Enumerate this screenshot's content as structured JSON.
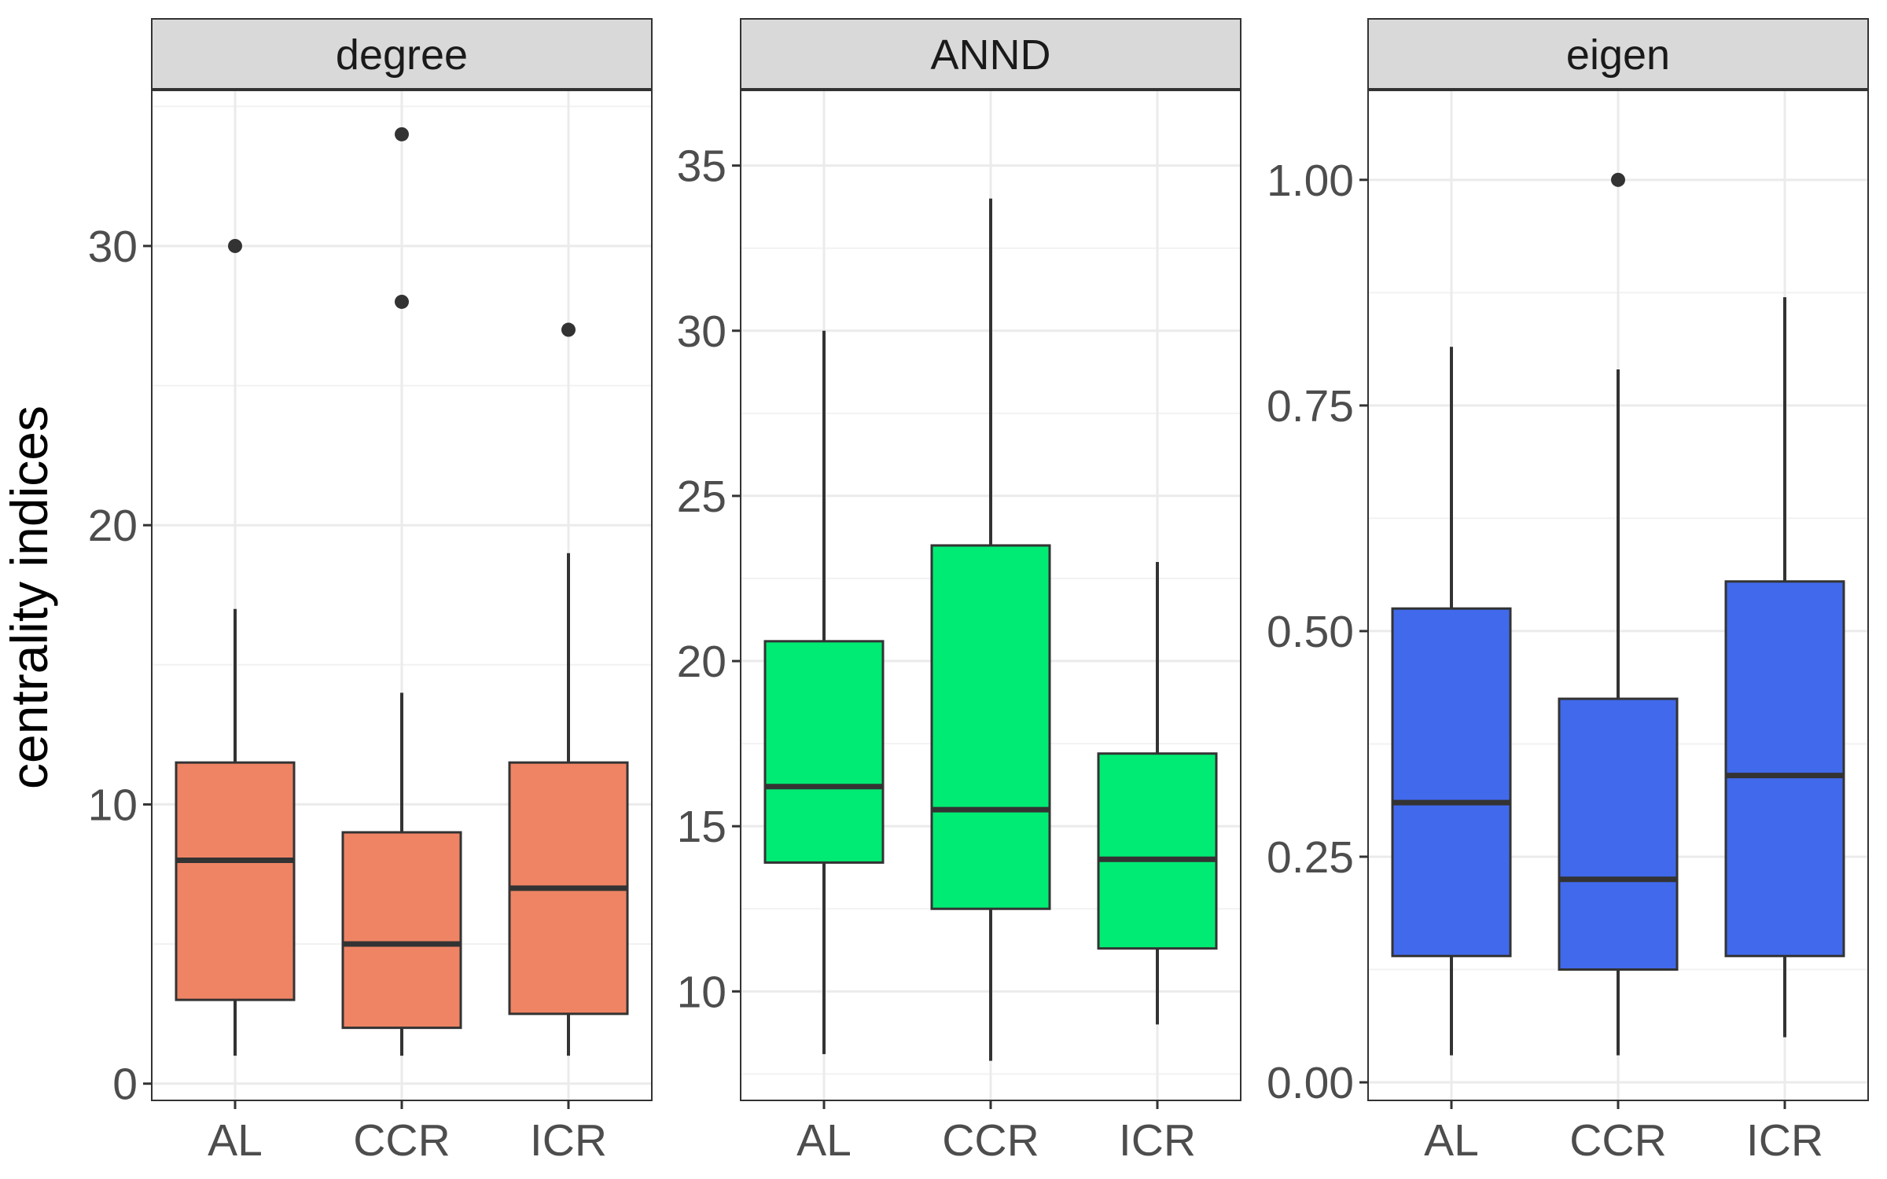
{
  "chart_data": {
    "type": "boxplot",
    "ylabel": "centrality indices",
    "facet_strip_fill": "#d9d9d9",
    "categories": [
      "AL",
      "CCR",
      "ICR"
    ],
    "panels": [
      {
        "title": "degree",
        "color": "#ef8464",
        "ylim": [
          -0.6,
          35.6
        ],
        "yticks": [
          0,
          10,
          20,
          30
        ],
        "ytick_labels": [
          "0",
          "10",
          "20",
          "30"
        ],
        "boxes": [
          {
            "category": "AL",
            "min": 1,
            "q1": 3,
            "median": 8,
            "q3": 11.5,
            "max": 17,
            "outliers": [
              30
            ]
          },
          {
            "category": "CCR",
            "min": 1,
            "q1": 2,
            "median": 5,
            "q3": 9,
            "max": 14,
            "outliers": [
              28,
              34
            ]
          },
          {
            "category": "ICR",
            "min": 1,
            "q1": 2.5,
            "median": 7,
            "q3": 11.5,
            "max": 19,
            "outliers": [
              27
            ]
          }
        ]
      },
      {
        "title": "ANND",
        "color": "#00eb73",
        "ylim": [
          6.7,
          37.3
        ],
        "yticks": [
          10,
          15,
          20,
          25,
          30,
          35
        ],
        "ytick_labels": [
          "10",
          "15",
          "20",
          "25",
          "30",
          "35"
        ],
        "boxes": [
          {
            "category": "AL",
            "min": 8.1,
            "q1": 13.9,
            "median": 16.2,
            "q3": 20.6,
            "max": 30,
            "outliers": []
          },
          {
            "category": "CCR",
            "min": 7.9,
            "q1": 12.5,
            "median": 15.5,
            "q3": 23.5,
            "max": 34,
            "outliers": []
          },
          {
            "category": "ICR",
            "min": 9,
            "q1": 11.3,
            "median": 14,
            "q3": 17.2,
            "max": 23,
            "outliers": []
          }
        ]
      },
      {
        "title": "eigen",
        "color": "#4169eb",
        "ylim": [
          -0.02,
          1.1
        ],
        "yticks": [
          0,
          0.25,
          0.5,
          0.75,
          1.0
        ],
        "ytick_labels": [
          "0.00",
          "0.25",
          "0.50",
          "0.75",
          "1.00"
        ],
        "boxes": [
          {
            "category": "AL",
            "min": 0.03,
            "q1": 0.14,
            "median": 0.31,
            "q3": 0.525,
            "max": 0.815,
            "outliers": []
          },
          {
            "category": "CCR",
            "min": 0.03,
            "q1": 0.125,
            "median": 0.225,
            "q3": 0.425,
            "max": 0.79,
            "outliers": [
              1.0
            ]
          },
          {
            "category": "ICR",
            "min": 0.05,
            "q1": 0.14,
            "median": 0.34,
            "q3": 0.555,
            "max": 0.87,
            "outliers": []
          }
        ]
      }
    ]
  }
}
